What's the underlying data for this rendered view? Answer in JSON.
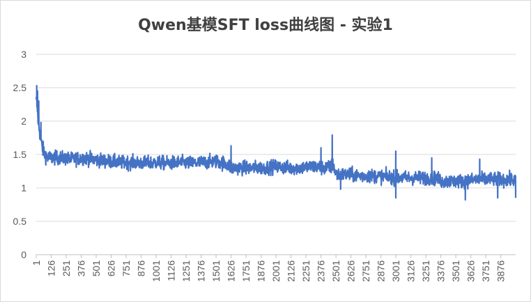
{
  "chart_data": {
    "type": "line",
    "title": "Qwen基模SFT loss曲线图 - 实验1",
    "xlabel": "",
    "ylabel": "",
    "ylim": [
      0,
      3
    ],
    "y_ticks": [
      "0",
      "0.5",
      "1",
      "1.5",
      "2",
      "2.5",
      "3"
    ],
    "x_tick_labels": [
      "1",
      "126",
      "251",
      "376",
      "501",
      "626",
      "751",
      "876",
      "1001",
      "1126",
      "1251",
      "1376",
      "1501",
      "1626",
      "1751",
      "1876",
      "2001",
      "2126",
      "2251",
      "2376",
      "2501",
      "2626",
      "2751",
      "2876",
      "3001",
      "3126",
      "3251",
      "3376",
      "3501",
      "3626",
      "3751",
      "3876"
    ],
    "x_range": [
      1,
      4000
    ],
    "grid": true,
    "legend": "none",
    "series_color": "#4472C4",
    "series": [
      {
        "x": [
          1,
          10,
          20,
          30,
          50,
          75,
          100,
          150,
          200,
          300,
          400,
          500,
          600,
          700,
          800,
          900,
          1000,
          1100,
          1200,
          1300,
          1400,
          1500,
          1600,
          1630,
          1700,
          1800,
          1900,
          2000,
          2100,
          2200,
          2300,
          2400,
          2450,
          2480,
          2500,
          2550,
          2600,
          2700,
          2800,
          2900,
          3000,
          3100,
          3200,
          3300,
          3350,
          3380,
          3450,
          3550,
          3650,
          3750,
          3850,
          3950,
          4000
        ],
        "y": [
          2.3,
          2.2,
          1.95,
          1.85,
          1.6,
          1.5,
          1.45,
          1.45,
          1.45,
          1.43,
          1.45,
          1.42,
          1.4,
          1.38,
          1.38,
          1.37,
          1.38,
          1.37,
          1.38,
          1.37,
          1.38,
          1.4,
          1.35,
          1.3,
          1.3,
          1.3,
          1.3,
          1.32,
          1.3,
          1.3,
          1.32,
          1.3,
          1.3,
          1.35,
          1.2,
          1.2,
          1.2,
          1.18,
          1.18,
          1.17,
          1.15,
          1.15,
          1.15,
          1.15,
          1.14,
          1.1,
          1.1,
          1.1,
          1.12,
          1.13,
          1.13,
          1.12,
          1.12
        ],
        "noise": [
          0.15,
          0.15,
          0.15,
          0.15,
          0.14,
          0.13,
          0.13,
          0.12,
          0.12,
          0.12,
          0.12,
          0.12,
          0.12,
          0.12,
          0.12,
          0.12,
          0.12,
          0.12,
          0.12,
          0.12,
          0.12,
          0.12,
          0.13,
          0.13,
          0.12,
          0.12,
          0.12,
          0.12,
          0.12,
          0.12,
          0.12,
          0.13,
          0.13,
          0.13,
          0.12,
          0.12,
          0.12,
          0.12,
          0.12,
          0.12,
          0.12,
          0.12,
          0.12,
          0.12,
          0.12,
          0.12,
          0.12,
          0.12,
          0.12,
          0.12,
          0.12,
          0.12,
          0.12
        ],
        "spikes": [
          {
            "x": 5,
            "y": 2.53
          },
          {
            "x": 12,
            "y": 2.45
          },
          {
            "x": 22,
            "y": 2.3
          },
          {
            "x": 40,
            "y": 1.98
          },
          {
            "x": 1626,
            "y": 1.63
          },
          {
            "x": 2376,
            "y": 1.6
          },
          {
            "x": 2470,
            "y": 1.79
          },
          {
            "x": 3000,
            "y": 1.55
          },
          {
            "x": 3300,
            "y": 1.45
          },
          {
            "x": 3700,
            "y": 1.43
          },
          {
            "x": 3000,
            "y": 0.85
          },
          {
            "x": 3580,
            "y": 0.82
          },
          {
            "x": 3850,
            "y": 0.85
          },
          {
            "x": 4000,
            "y": 0.85
          },
          {
            "x": 2540,
            "y": 0.98
          }
        ]
      }
    ]
  }
}
